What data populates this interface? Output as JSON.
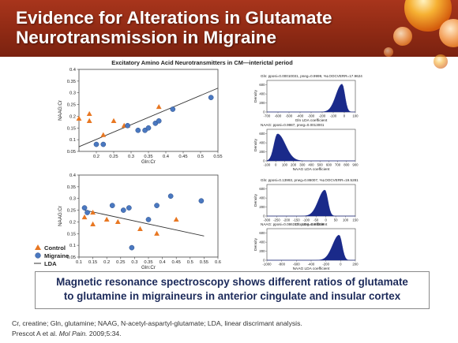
{
  "slide": {
    "title": "Evidence for Alterations in Glutamate\nNeurotransmission in Migraine",
    "caption": "Magnetic resonance spectroscopy shows different ratios of glutamate\nto glutamine in migraineurs in anterior cingulate and insular cortex",
    "footnote_line1": "Cr, creatine; Gln, glutamine; NAAG, N-acetyl-aspartyl-glutamate; LDA, linear discrimant analysis.",
    "footnote_line2_a": "Prescot A et al. ",
    "footnote_line2_journal": "Mol Pain.",
    "footnote_line2_b": " 2009;5:34.",
    "colors": {
      "header": "#8f2a14",
      "control": "#e87722",
      "migraine": "#4a78c0",
      "histogram": "#1a2a8a",
      "caption_text": "#1c2a5a"
    }
  },
  "figure": {
    "title": "Excitatory Amino Acid Neurotransmitters in CM—interictal period",
    "legend": {
      "control": "Control",
      "migraine": "Migraine",
      "lda": "LDA"
    }
  },
  "chart_data": [
    {
      "type": "scatter",
      "panel": "top",
      "xlabel": "Gln:Cr",
      "ylabel": "NAAG:Cr",
      "xlim": [
        0.15,
        0.55
      ],
      "ylim": [
        0.05,
        0.4
      ],
      "xticks": [
        "0.2",
        "0.25",
        "0.3",
        "0.35",
        "0.4",
        "0.45",
        "0.5",
        "0.55"
      ],
      "yticks": [
        "0.05",
        "0.1",
        "0.15",
        "0.2",
        "0.25",
        "0.3",
        "0.35",
        "0.4"
      ],
      "series": [
        {
          "name": "Control",
          "marker": "triangle",
          "points": [
            [
              0.15,
              0.19
            ],
            [
              0.18,
              0.21
            ],
            [
              0.18,
              0.18
            ],
            [
              0.22,
              0.12
            ],
            [
              0.25,
              0.18
            ],
            [
              0.28,
              0.16
            ],
            [
              0.29,
              0.16
            ],
            [
              0.38,
              0.24
            ]
          ]
        },
        {
          "name": "Migraine",
          "marker": "circle",
          "points": [
            [
              0.2,
              0.08
            ],
            [
              0.22,
              0.08
            ],
            [
              0.29,
              0.16
            ],
            [
              0.32,
              0.14
            ],
            [
              0.34,
              0.14
            ],
            [
              0.35,
              0.15
            ],
            [
              0.37,
              0.17
            ],
            [
              0.38,
              0.18
            ],
            [
              0.42,
              0.23
            ],
            [
              0.53,
              0.28
            ]
          ]
        }
      ],
      "lda_line": [
        [
          0.15,
          0.07
        ],
        [
          0.55,
          0.32
        ]
      ]
    },
    {
      "type": "scatter",
      "panel": "bottom",
      "xlabel": "Gln:Cr",
      "ylabel": "NAAG:Cr",
      "xlim": [
        0.1,
        0.6
      ],
      "ylim": [
        0.05,
        0.4
      ],
      "xticks": [
        "0.1",
        "0.15",
        "0.2",
        "0.25",
        "0.3",
        "0.35",
        "0.4",
        "0.45",
        "0.5",
        "0.55",
        "0.6"
      ],
      "yticks": [
        "0.05",
        "0.1",
        "0.15",
        "0.2",
        "0.25",
        "0.3",
        "0.35",
        "0.4"
      ],
      "series": [
        {
          "name": "Control",
          "marker": "triangle",
          "points": [
            [
              0.12,
              0.22
            ],
            [
              0.15,
              0.24
            ],
            [
              0.15,
              0.19
            ],
            [
              0.2,
              0.21
            ],
            [
              0.24,
              0.2
            ],
            [
              0.32,
              0.17
            ],
            [
              0.38,
              0.15
            ],
            [
              0.45,
              0.21
            ]
          ]
        },
        {
          "name": "Migraine",
          "marker": "circle",
          "points": [
            [
              0.12,
              0.26
            ],
            [
              0.13,
              0.24
            ],
            [
              0.22,
              0.27
            ],
            [
              0.26,
              0.25
            ],
            [
              0.28,
              0.26
            ],
            [
              0.29,
              0.09
            ],
            [
              0.35,
              0.21
            ],
            [
              0.38,
              0.27
            ],
            [
              0.43,
              0.31
            ],
            [
              0.54,
              0.29
            ]
          ]
        }
      ],
      "lda_line": [
        [
          0.12,
          0.25
        ],
        [
          0.55,
          0.14
        ]
      ]
    },
    {
      "type": "histogram",
      "label": "Gln: pposi=0.00010031, pneg=0.9999, %LOOCVERR=17.9624",
      "xlabel": "Gln LDA coefficient",
      "ylabel": "Density",
      "xticks": [
        "-700",
        "-600",
        "-500",
        "-400",
        "-300",
        "-200",
        "-100",
        "0",
        "100"
      ],
      "yticks": [
        "0",
        "200",
        "400",
        "600"
      ],
      "xlim": [
        -700,
        100
      ],
      "ylim": [
        0,
        700
      ],
      "peak_x": -20,
      "peak_density": 620,
      "spread": 25,
      "skew": "left"
    },
    {
      "type": "histogram",
      "label": "NAAG: pposi=0.9987, pneg=0.0013001",
      "xlabel": "NAAG LDA coefficient",
      "ylabel": "Density",
      "xticks": [
        "-100",
        "0",
        "100",
        "200",
        "300",
        "400",
        "500",
        "600",
        "700",
        "800",
        "900"
      ],
      "yticks": [
        "0",
        "200",
        "400",
        "600"
      ],
      "xlim": [
        -100,
        900
      ],
      "ylim": [
        0,
        700
      ],
      "peak_x": 20,
      "peak_density": 600,
      "spread": 40,
      "skew": "right"
    },
    {
      "type": "histogram",
      "label": "Gln: pposi=0.13993, pneg=0.86007, %LOOCVERR=19.5281",
      "xlabel": "Gln LDA coefficient",
      "ylabel": "Density",
      "xticks": [
        "-300",
        "-250",
        "-200",
        "-150",
        "-100",
        "-50",
        "0",
        "50",
        "100",
        "150"
      ],
      "yticks": [
        "0",
        "200",
        "400",
        "600"
      ],
      "xlim": [
        -300,
        150
      ],
      "ylim": [
        0,
        700
      ],
      "peak_x": -5,
      "peak_density": 580,
      "spread": 15,
      "skew": "left"
    },
    {
      "type": "histogram",
      "label": "NAAG: pposi=0.086317, pneg=0.91368",
      "xlabel": "NAAG LDA coefficient",
      "ylabel": "Density",
      "xticks": [
        "-1000",
        "-800",
        "-600",
        "-400",
        "-200",
        "0",
        "200"
      ],
      "yticks": [
        "0",
        "200",
        "400",
        "600"
      ],
      "xlim": [
        -1000,
        200
      ],
      "ylim": [
        0,
        700
      ],
      "peak_x": -20,
      "peak_density": 560,
      "spread": 40,
      "skew": "left"
    }
  ]
}
